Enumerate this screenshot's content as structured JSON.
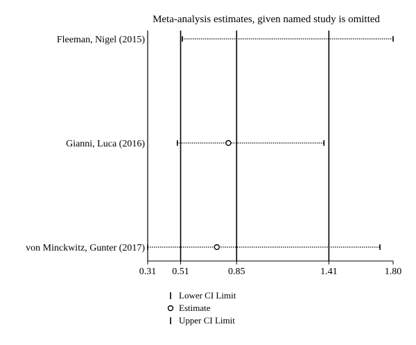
{
  "chart_data": {
    "type": "forest",
    "title": "Meta-analysis estimates, given named study is omitted",
    "xlim": [
      0.31,
      1.8
    ],
    "xticks": [
      {
        "value": 0.31,
        "label": "0.31"
      },
      {
        "value": 0.51,
        "label": "0.51"
      },
      {
        "value": 0.85,
        "label": "0.85"
      },
      {
        "value": 1.41,
        "label": "1.41"
      },
      {
        "value": 1.8,
        "label": "1.80"
      }
    ],
    "reference_lines": [
      0.51,
      0.85,
      1.41
    ],
    "studies": [
      {
        "name": "Fleeman, Nigel (2015)",
        "lower": 0.52,
        "estimate": null,
        "upper": 1.8
      },
      {
        "name": "Gianni, Luca (2016)",
        "lower": 0.49,
        "estimate": 0.8,
        "upper": 1.38
      },
      {
        "name": "von Minckwitz, Gunter (2017)",
        "lower": 0.31,
        "estimate": 0.73,
        "upper": 1.72
      }
    ],
    "legend": [
      {
        "key": "lower",
        "label": "Lower CI Limit"
      },
      {
        "key": "estimate",
        "label": "Estimate"
      },
      {
        "key": "upper",
        "label": "Upper CI Limit"
      }
    ]
  }
}
